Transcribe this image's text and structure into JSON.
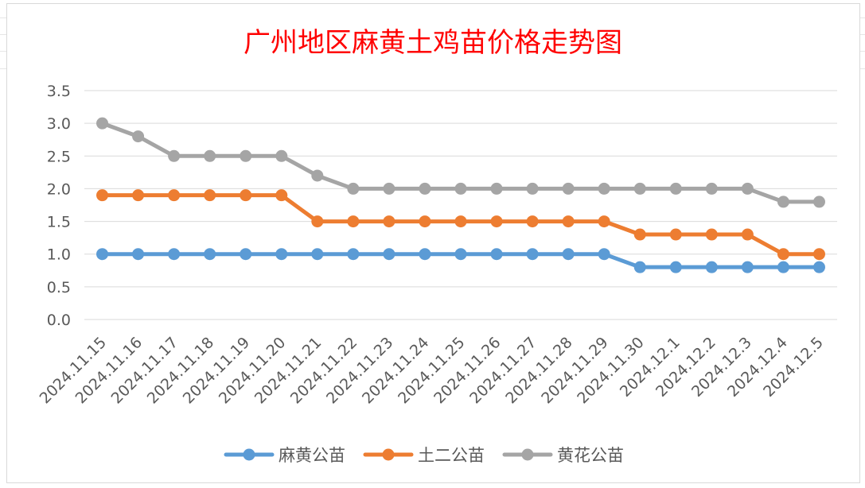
{
  "chart_data": {
    "type": "line",
    "title": "广州地区麻黄土鸡苗价格走势图",
    "xlabel": "",
    "ylabel": "",
    "ylim": [
      0,
      3.5
    ],
    "yticks": [
      "0.0",
      "0.5",
      "1.0",
      "1.5",
      "2.0",
      "2.5",
      "3.0",
      "3.5"
    ],
    "grid": true,
    "legend_position": "bottom",
    "categories": [
      "2024.11.15",
      "2024.11.16",
      "2024.11.17",
      "2024.11.18",
      "2024.11.19",
      "2024.11.20",
      "2024.11.21",
      "2024.11.22",
      "2024.11.23",
      "2024.11.24",
      "2024.11.25",
      "2024.11.26",
      "2024.11.27",
      "2024.11.28",
      "2024.11.29",
      "2024.11.30",
      "2024.12.1",
      "2024.12.2",
      "2024.12.3",
      "2024.12.4",
      "2024.12.5"
    ],
    "series": [
      {
        "name": "麻黄公苗",
        "color": "#5b9bd5",
        "values": [
          1.0,
          1.0,
          1.0,
          1.0,
          1.0,
          1.0,
          1.0,
          1.0,
          1.0,
          1.0,
          1.0,
          1.0,
          1.0,
          1.0,
          1.0,
          0.8,
          0.8,
          0.8,
          0.8,
          0.8,
          0.8
        ]
      },
      {
        "name": "土二公苗",
        "color": "#ed7d31",
        "values": [
          1.9,
          1.9,
          1.9,
          1.9,
          1.9,
          1.9,
          1.5,
          1.5,
          1.5,
          1.5,
          1.5,
          1.5,
          1.5,
          1.5,
          1.5,
          1.3,
          1.3,
          1.3,
          1.3,
          1.0,
          1.0
        ]
      },
      {
        "name": "黄花公苗",
        "color": "#a5a5a5",
        "values": [
          3.0,
          2.8,
          2.5,
          2.5,
          2.5,
          2.5,
          2.2,
          2.0,
          2.0,
          2.0,
          2.0,
          2.0,
          2.0,
          2.0,
          2.0,
          2.0,
          2.0,
          2.0,
          2.0,
          1.8,
          1.8
        ]
      }
    ]
  }
}
